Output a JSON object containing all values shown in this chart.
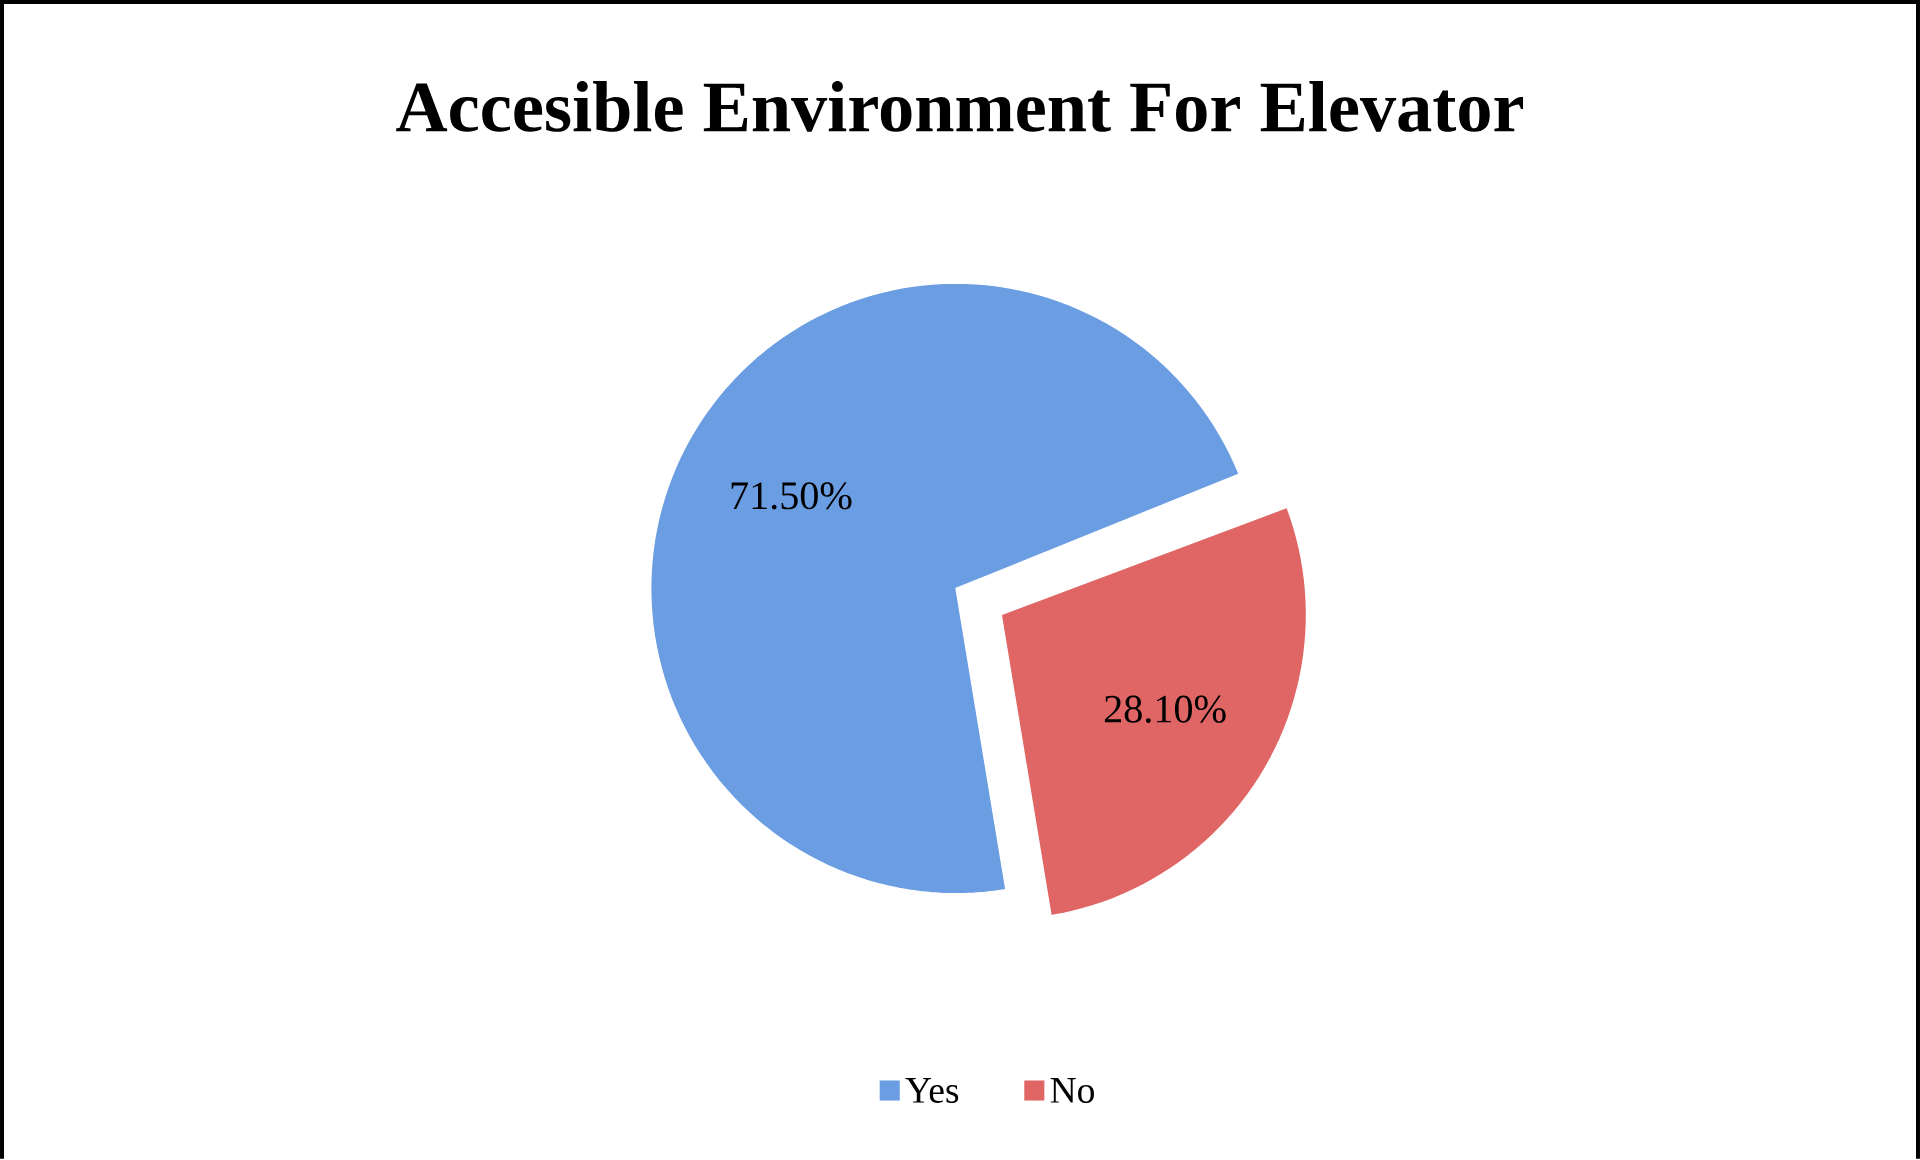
{
  "chart_data": {
    "type": "pie",
    "title": "Accesible Environment For Elevator",
    "categories": [
      "Yes",
      "No"
    ],
    "values": [
      71.5,
      28.1
    ],
    "colors": [
      "#6b9de3",
      "#e06666"
    ],
    "value_labels": [
      "71.50%",
      "28.10%"
    ],
    "legend": "bottom"
  }
}
